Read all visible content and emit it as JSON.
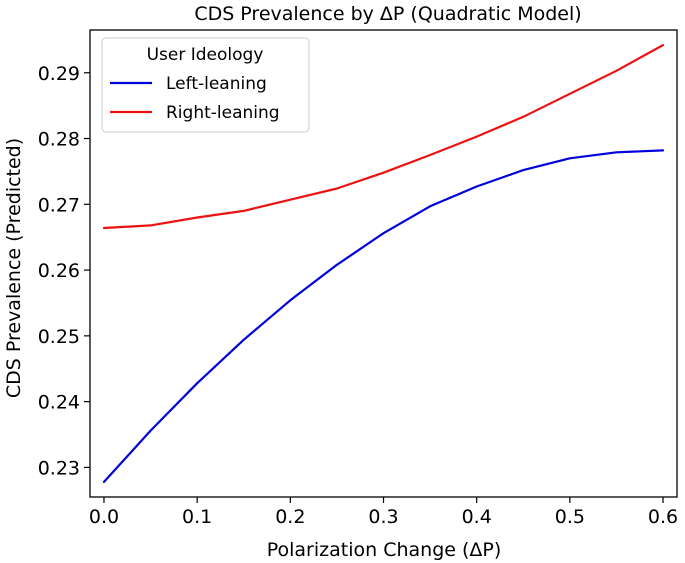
{
  "chart_data": {
    "type": "line",
    "title": "CDS Prevalence by ΔP (Quadratic Model)",
    "xlabel": "Polarization Change (ΔP)",
    "ylabel": "CDS Prevalence (Predicted)",
    "xlim": [
      -0.015,
      0.615
    ],
    "ylim": [
      0.2255,
      0.2965
    ],
    "xticks": [
      0.0,
      0.1,
      0.2,
      0.3,
      0.4,
      0.5,
      0.6
    ],
    "xtick_labels": [
      "0.0",
      "0.1",
      "0.2",
      "0.3",
      "0.4",
      "0.5",
      "0.6"
    ],
    "yticks": [
      0.23,
      0.24,
      0.25,
      0.26,
      0.27,
      0.28,
      0.29
    ],
    "ytick_labels": [
      "0.23",
      "0.24",
      "0.25",
      "0.26",
      "0.27",
      "0.28",
      "0.29"
    ],
    "grid": false,
    "legend": {
      "title": "User Ideology",
      "location": "top-left"
    },
    "x": [
      0.0,
      0.05,
      0.1,
      0.15,
      0.2,
      0.25,
      0.3,
      0.35,
      0.4,
      0.45,
      0.5,
      0.55,
      0.6
    ],
    "series": [
      {
        "name": "Left-leaning",
        "color": "#0000dd",
        "values": [
          0.2278,
          0.2356,
          0.2428,
          0.2494,
          0.2554,
          0.2608,
          0.2656,
          0.2697,
          0.2727,
          0.2752,
          0.277,
          0.2779,
          0.2782
        ]
      },
      {
        "name": "Right-leaning",
        "color": "#ee1111",
        "values": [
          0.2664,
          0.2668,
          0.268,
          0.269,
          0.2707,
          0.2724,
          0.2748,
          0.2775,
          0.2803,
          0.2833,
          0.2868,
          0.2903,
          0.2942
        ]
      }
    ]
  }
}
